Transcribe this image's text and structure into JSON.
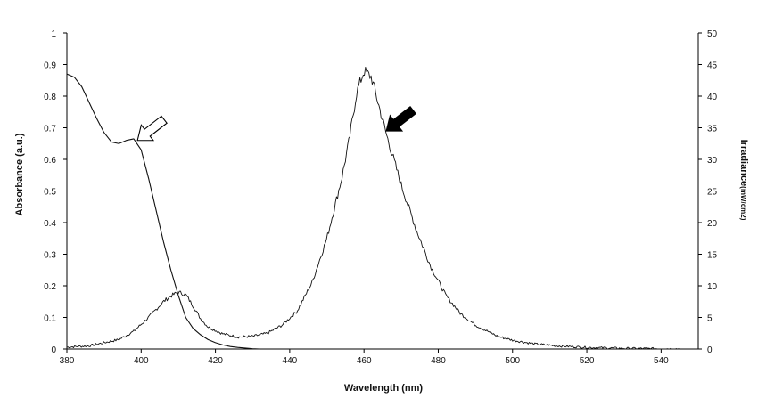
{
  "chart_data": {
    "type": "line",
    "title": "",
    "xlabel": "Wavelength (nm)",
    "ylabel_left": "Absorbance (a.u.)",
    "ylabel_right_main": "Irradiance",
    "ylabel_right_unit": "(mW/cm2)",
    "xlim": [
      380,
      550
    ],
    "ylim_left": [
      0,
      1
    ],
    "ylim_right": [
      0,
      50
    ],
    "x_ticks": [
      380,
      400,
      420,
      440,
      460,
      480,
      500,
      520,
      540
    ],
    "y_left_ticks": [
      0,
      0.1,
      0.2,
      0.3,
      0.4,
      0.5,
      0.6,
      0.7,
      0.8,
      0.9,
      1
    ],
    "y_right_ticks": [
      0,
      5,
      10,
      15,
      20,
      25,
      30,
      35,
      40,
      45,
      50
    ],
    "grid": false,
    "legend": "none",
    "series": [
      {
        "axis": "left",
        "x": [
          380,
          382,
          384,
          386,
          388,
          390,
          392,
          394,
          396,
          398,
          400,
          402,
          404,
          406,
          408,
          410,
          412,
          414,
          416,
          418,
          420,
          422,
          424,
          426,
          428,
          430,
          432
        ],
        "values": [
          0.87,
          0.86,
          0.83,
          0.78,
          0.73,
          0.685,
          0.655,
          0.65,
          0.66,
          0.665,
          0.63,
          0.54,
          0.44,
          0.34,
          0.25,
          0.17,
          0.1,
          0.065,
          0.045,
          0.03,
          0.02,
          0.013,
          0.008,
          0.005,
          0.003,
          0.001,
          0
        ]
      },
      {
        "axis": "right",
        "x": [
          380,
          386,
          390,
          394,
          398,
          402,
          406,
          408,
          410,
          412,
          414,
          416,
          418,
          422,
          426,
          430,
          434,
          438,
          442,
          446,
          450,
          454,
          456,
          458,
          460,
          462,
          464,
          466,
          468,
          470,
          474,
          478,
          482,
          486,
          490,
          496,
          500,
          506,
          512,
          520,
          530,
          540,
          545
        ],
        "values": [
          0.3,
          0.5,
          1.0,
          1.5,
          2.8,
          5.0,
          7.5,
          8.4,
          9.0,
          8.6,
          6.8,
          4.8,
          3.5,
          2.4,
          1.9,
          2.0,
          2.5,
          3.8,
          6.0,
          10.5,
          17.5,
          27.0,
          33.0,
          40.5,
          44.0,
          43.0,
          38.5,
          34.0,
          30.0,
          26.0,
          19.0,
          13.0,
          8.5,
          5.6,
          3.8,
          2.0,
          1.4,
          0.8,
          0.5,
          0.25,
          0.1,
          0.05,
          0.03
        ]
      }
    ],
    "annotations": [
      {
        "style": "open-arrow",
        "target_axis": "left",
        "x": 399,
        "y": 0.66
      },
      {
        "style": "filled-arrow",
        "target_axis": "right",
        "x": 466,
        "y": 34.5
      }
    ]
  }
}
